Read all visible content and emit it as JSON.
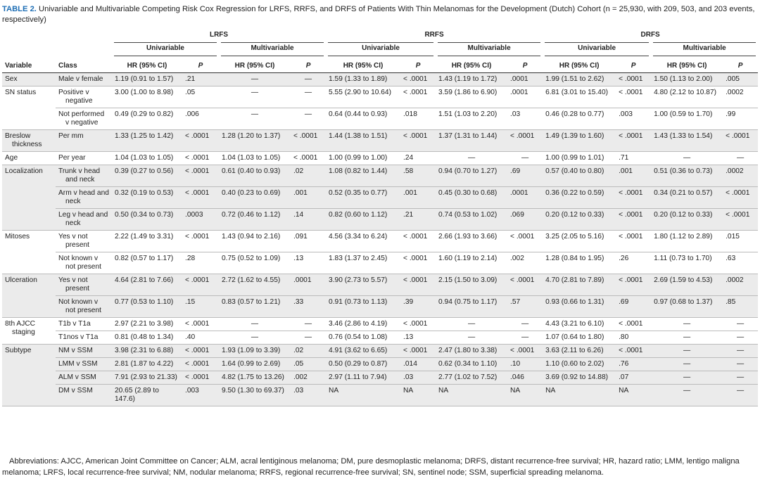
{
  "caption": {
    "label": "TABLE 2.",
    "text": "Univariable and Multivariable Competing Risk Cox Regression for LRFS, RRFS, and DRFS of Patients With Thin Melanomas for the Development (Dutch) Cohort (n = 25,930, with 209, 503, and 203 events, respectively)"
  },
  "header": {
    "outcomes": [
      {
        "name": "LRFS",
        "models": [
          "Univariable",
          "Multivariable"
        ]
      },
      {
        "name": "RRFS",
        "models": [
          "Univariable",
          "Multivariable"
        ]
      },
      {
        "name": "DRFS",
        "models": [
          "Univariable",
          "Multivariable"
        ]
      }
    ],
    "columns": [
      "Variable",
      "Class",
      "HR (95% CI)",
      "P",
      "HR (95% CI)",
      "P",
      "HR (95% CI)",
      "P",
      "HR (95% CI)",
      "P",
      "HR (95% CI)",
      "P",
      "HR (95% CI)",
      "P"
    ]
  },
  "groups": [
    {
      "variable": "Sex",
      "rows": [
        {
          "class": "Male v female",
          "cells": [
            "1.19 (0.91 to 1.57)",
            ".21",
            "—",
            "—",
            "1.59 (1.33 to 1.89)",
            "< .0001",
            "1.43 (1.19 to 1.72)",
            ".0001",
            "1.99 (1.51 to 2.62)",
            "< .0001",
            "1.50 (1.13 to 2.00)",
            ".005"
          ]
        }
      ]
    },
    {
      "variable": "SN status",
      "rows": [
        {
          "class": "Positive v negative",
          "cells": [
            "3.00 (1.00 to 8.98)",
            ".05",
            "—",
            "—",
            "5.55 (2.90 to 10.64)",
            "< .0001",
            "3.59 (1.86 to 6.90)",
            ".0001",
            "6.81 (3.01 to 15.40)",
            "< .0001",
            "4.80 (2.12 to 10.87)",
            ".0002"
          ]
        },
        {
          "class": "Not performed v negative",
          "cells": [
            "0.49 (0.29 to 0.82)",
            ".006",
            "—",
            "—",
            "0.64 (0.44 to 0.93)",
            ".018",
            "1.51 (1.03 to 2.20)",
            ".03",
            "0.46 (0.28 to 0.77)",
            ".003",
            "1.00 (0.59 to 1.70)",
            ".99"
          ]
        }
      ]
    },
    {
      "variable": "Breslow thickness",
      "rows": [
        {
          "class": "Per mm",
          "cells": [
            "1.33 (1.25 to 1.42)",
            "< .0001",
            "1.28 (1.20 to 1.37)",
            "< .0001",
            "1.44 (1.38 to 1.51)",
            "< .0001",
            "1.37 (1.31 to 1.44)",
            "< .0001",
            "1.49 (1.39 to 1.60)",
            "< .0001",
            "1.43 (1.33 to 1.54)",
            "< .0001"
          ]
        }
      ]
    },
    {
      "variable": "Age",
      "rows": [
        {
          "class": "Per year",
          "cells": [
            "1.04 (1.03 to 1.05)",
            "< .0001",
            "1.04 (1.03 to 1.05)",
            "< .0001",
            "1.00 (0.99 to 1.00)",
            ".24",
            "—",
            "—",
            "1.00 (0.99 to 1.01)",
            ".71",
            "—",
            "—"
          ]
        }
      ]
    },
    {
      "variable": "Localization",
      "rows": [
        {
          "class": "Trunk v head and neck",
          "cells": [
            "0.39 (0.27 to 0.56)",
            "< .0001",
            "0.61 (0.40 to 0.93)",
            ".02",
            "1.08 (0.82 to 1.44)",
            ".58",
            "0.94 (0.70 to 1.27)",
            ".69",
            "0.57 (0.40 to 0.80)",
            ".001",
            "0.51 (0.36 to 0.73)",
            ".0002"
          ]
        },
        {
          "class": "Arm v head and neck",
          "cells": [
            "0.32 (0.19 to 0.53)",
            "< .0001",
            "0.40 (0.23 to 0.69)",
            ".001",
            "0.52 (0.35 to 0.77)",
            ".001",
            "0.45 (0.30 to 0.68)",
            ".0001",
            "0.36 (0.22 to 0.59)",
            "< .0001",
            "0.34 (0.21 to 0.57)",
            "< .0001"
          ]
        },
        {
          "class": "Leg v head and neck",
          "cells": [
            "0.50 (0.34 to 0.73)",
            ".0003",
            "0.72 (0.46 to 1.12)",
            ".14",
            "0.82 (0.60 to 1.12)",
            ".21",
            "0.74 (0.53 to 1.02)",
            ".069",
            "0.20 (0.12 to 0.33)",
            "< .0001",
            "0.20 (0.12 to 0.33)",
            "< .0001"
          ]
        }
      ]
    },
    {
      "variable": "Mitoses",
      "rows": [
        {
          "class": "Yes v not present",
          "cells": [
            "2.22 (1.49 to 3.31)",
            "< .0001",
            "1.43 (0.94 to 2.16)",
            ".091",
            "4.56 (3.34 to 6.24)",
            "< .0001",
            "2.66 (1.93 to 3.66)",
            "< .0001",
            "3.25 (2.05 to 5.16)",
            "< .0001",
            "1.80 (1.12 to 2.89)",
            ".015"
          ]
        },
        {
          "class": "Not known v not present",
          "cells": [
            "0.82 (0.57 to 1.17)",
            ".28",
            "0.75 (0.52 to 1.09)",
            ".13",
            "1.83 (1.37 to 2.45)",
            "< .0001",
            "1.60 (1.19 to 2.14)",
            ".002",
            "1.28 (0.84 to 1.95)",
            ".26",
            "1.11 (0.73 to 1.70)",
            ".63"
          ]
        }
      ]
    },
    {
      "variable": "Ulceration",
      "rows": [
        {
          "class": "Yes v not present",
          "cells": [
            "4.64 (2.81 to 7.66)",
            "< .0001",
            "2.72 (1.62 to 4.55)",
            ".0001",
            "3.90 (2.73 to 5.57)",
            "< .0001",
            "2.15 (1.50 to 3.09)",
            "< .0001",
            "4.70 (2.81 to 7.89)",
            "< .0001",
            "2.69 (1.59 to 4.53)",
            ".0002"
          ]
        },
        {
          "class": "Not known v not present",
          "cells": [
            "0.77 (0.53 to 1.10)",
            ".15",
            "0.83 (0.57 to 1.21)",
            ".33",
            "0.91 (0.73 to 1.13)",
            ".39",
            "0.94 (0.75 to 1.17)",
            ".57",
            "0.93 (0.66 to 1.31)",
            ".69",
            "0.97 (0.68 to 1.37)",
            ".85"
          ]
        }
      ]
    },
    {
      "variable": "8th AJCC staging",
      "rows": [
        {
          "class": "T1b v T1a",
          "cells": [
            "2.97 (2.21 to 3.98)",
            "< .0001",
            "—",
            "—",
            "3.46 (2.86 to 4.19)",
            "< .0001",
            "—",
            "—",
            "4.43 (3.21 to 6.10)",
            "< .0001",
            "—",
            "—"
          ]
        },
        {
          "class": "T1nos v T1a",
          "cells": [
            "0.81 (0.48 to 1.34)",
            ".40",
            "—",
            "—",
            "0.76 (0.54 to 1.08)",
            ".13",
            "—",
            "—",
            "1.07 (0.64 to 1.80)",
            ".80",
            "—",
            "—"
          ]
        }
      ]
    },
    {
      "variable": "Subtype",
      "rows": [
        {
          "class": "NM v SSM",
          "cells": [
            "3.98 (2.31 to 6.88)",
            "< .0001",
            "1.93 (1.09 to 3.39)",
            ".02",
            "4.91 (3.62 to 6.65)",
            "< .0001",
            "2.47 (1.80 to 3.38)",
            "< .0001",
            "3.63 (2.11 to 6.26)",
            "< .0001",
            "—",
            "—"
          ]
        },
        {
          "class": "LMM v SSM",
          "cells": [
            "2.81 (1.87 to 4.22)",
            "< .0001",
            "1.64 (0.99 to 2.69)",
            ".05",
            "0.50 (0.29 to 0.87)",
            ".014",
            "0.62 (0.34 to 1.10)",
            ".10",
            "1.10 (0.60 to 2.02)",
            ".76",
            "—",
            "—"
          ]
        },
        {
          "class": "ALM v SSM",
          "cells": [
            "7.91 (2.93 to 21.33)",
            "< .0001",
            "4.82 (1.75 to 13.26)",
            ".002",
            "2.97 (1.11 to 7.94)",
            ".03",
            "2.77 (1.02 to 7.52)",
            ".046",
            "3.69 (0.92 to 14.88)",
            ".07",
            "—",
            "—"
          ]
        },
        {
          "class": "DM v SSM",
          "cells": [
            "20.65 (2.89 to 147.6)",
            ".003",
            "9.50 (1.30 to 69.37)",
            ".03",
            "NA",
            "NA",
            "NA",
            "NA",
            "NA",
            "NA",
            "—",
            "—"
          ]
        }
      ]
    }
  ],
  "footnote": "Abbreviations: AJCC, American Joint Committee on Cancer; ALM, acral lentiginous melanoma; DM, pure desmoplastic melanoma; DRFS, distant recurrence-free survival; HR, hazard ratio; LMM, lentigo maligna melanoma; LRFS, local recurrence-free survival; NM, nodular melanoma; RRFS, regional recurrence-free survival; SN, sentinel node; SSM, superficial spreading melanoma."
}
